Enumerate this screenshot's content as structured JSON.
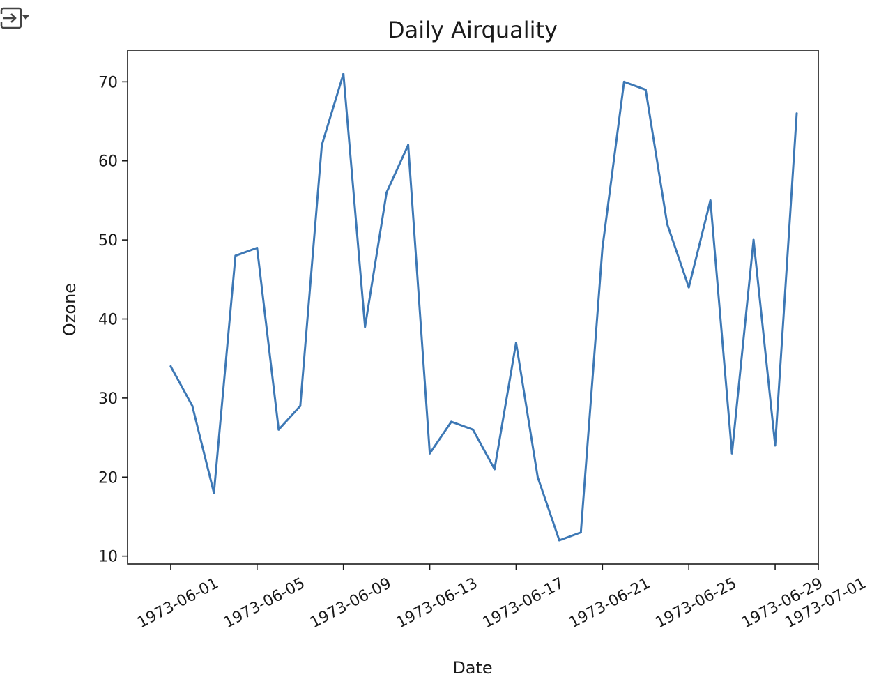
{
  "toolbar": {
    "icon": "output-collapse-icon"
  },
  "chart_data": {
    "type": "line",
    "title": "Daily Airquality",
    "xlabel": "Date",
    "ylabel": "Ozone",
    "ylim": [
      9,
      74
    ],
    "xlim": [
      "1973-05-30",
      "1973-07-01"
    ],
    "yticks": [
      10,
      20,
      30,
      40,
      50,
      60,
      70
    ],
    "xticks": [
      "1973-06-01",
      "1973-06-05",
      "1973-06-09",
      "1973-06-13",
      "1973-06-17",
      "1973-06-21",
      "1973-06-25",
      "1973-06-29",
      "1973-07-01"
    ],
    "grid": false,
    "line_color": "#3d78b5",
    "series": [
      {
        "x": [
          "1973-06-01",
          "1973-06-02",
          "1973-06-03",
          "1973-06-04",
          "1973-06-05",
          "1973-06-06",
          "1973-06-07",
          "1973-06-08",
          "1973-06-09",
          "1973-06-10",
          "1973-06-11",
          "1973-06-12",
          "1973-06-13",
          "1973-06-14",
          "1973-06-15",
          "1973-06-16",
          "1973-06-17",
          "1973-06-18",
          "1973-06-19",
          "1973-06-20",
          "1973-06-21",
          "1973-06-22",
          "1973-06-23",
          "1973-06-24",
          "1973-06-25",
          "1973-06-26",
          "1973-06-27",
          "1973-06-28",
          "1973-06-29",
          "1973-06-30"
        ],
        "values": [
          34,
          29,
          18,
          48,
          49,
          26,
          29,
          62,
          71,
          39,
          56,
          62,
          23,
          27,
          26,
          21,
          37,
          20,
          12,
          13,
          49,
          70,
          69,
          52,
          44,
          55,
          23,
          50,
          24,
          66
        ]
      }
    ]
  }
}
